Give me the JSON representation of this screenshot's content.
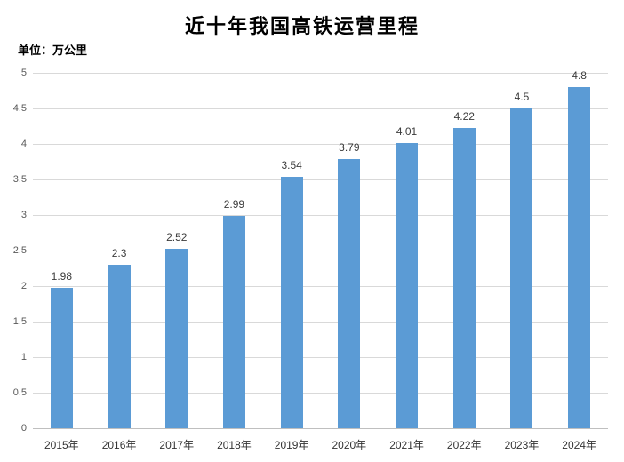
{
  "chart": {
    "unit_label": "单位：万公里"
  },
  "chart_data": {
    "type": "bar",
    "title": "近十年我国高铁运营里程",
    "unit": "万公里",
    "categories": [
      "2015年",
      "2016年",
      "2017年",
      "2018年",
      "2019年",
      "2020年",
      "2021年",
      "2022年",
      "2023年",
      "2024年"
    ],
    "values": [
      1.98,
      2.3,
      2.52,
      2.99,
      3.54,
      3.79,
      4.01,
      4.22,
      4.5,
      4.8
    ],
    "data_labels": [
      "1.98",
      "2.3",
      "2.52",
      "2.99",
      "3.54",
      "3.79",
      "4.01",
      "4.22",
      "4.5",
      "4.8"
    ],
    "xlabel": "",
    "ylabel": "",
    "ylim": [
      0,
      5
    ],
    "ytick_step": 0.5,
    "yticks": [
      "0",
      "0.5",
      "1",
      "1.5",
      "2",
      "2.5",
      "3",
      "3.5",
      "4",
      "4.5",
      "5"
    ],
    "grid": true,
    "legend": false,
    "colors": {
      "bar": "#5B9BD5",
      "gridline": "#D9D9D9",
      "axis_line": "#BFBFBF",
      "tick_text": "#595959",
      "category_text": "#333333",
      "data_label_text": "#3b3b3b",
      "title_text": "#000000"
    }
  }
}
